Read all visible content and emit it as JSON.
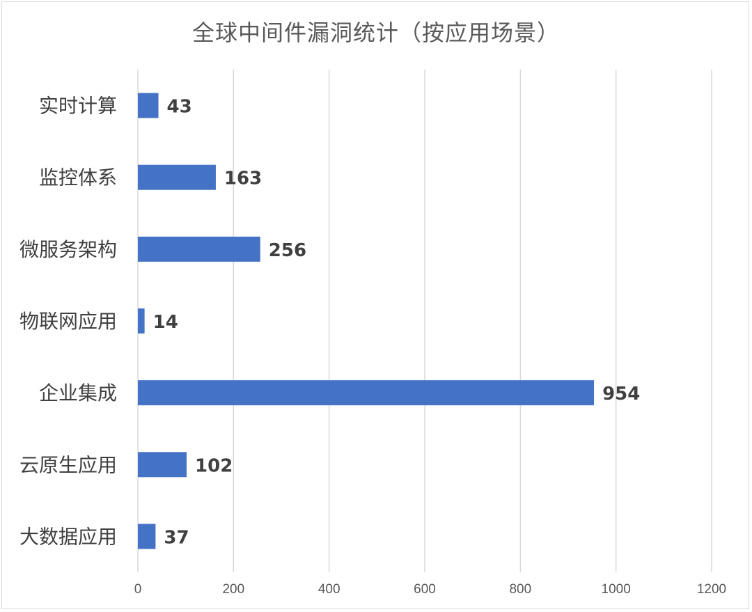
{
  "chart_data": {
    "type": "bar",
    "orientation": "horizontal",
    "title": "全球中间件漏洞统计（按应用场景）",
    "categories": [
      "实时计算",
      "监控体系",
      "微服务架构",
      "物联网应用",
      "企业集成",
      "云原生应用",
      "大数据应用"
    ],
    "values": [
      43,
      163,
      256,
      14,
      954,
      102,
      37
    ],
    "xlim": [
      0,
      1200
    ],
    "xticks": [
      "0",
      "200",
      "400",
      "600",
      "800",
      "1000",
      "1200"
    ],
    "grid": true,
    "legend": "none",
    "bar_color": "#4472C4",
    "grid_color": "#d9d9d9"
  }
}
